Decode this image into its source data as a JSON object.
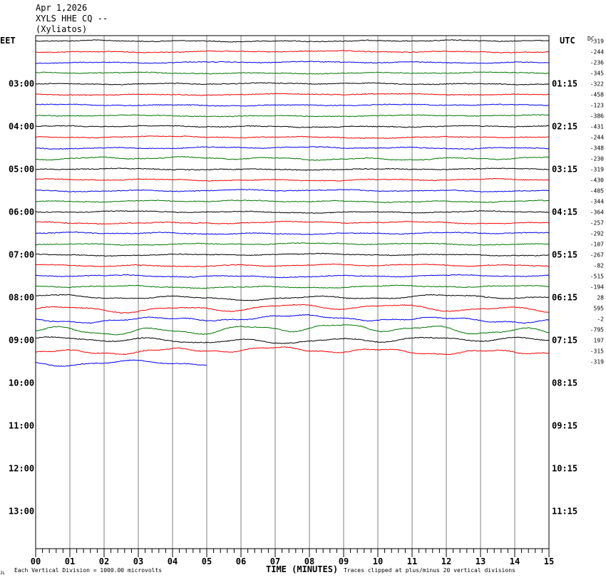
{
  "header": {
    "date": "Apr 1,2026",
    "station": "XYLS HHE CQ --",
    "location": "(Xyliatos)"
  },
  "labels": {
    "left_zone": "EET",
    "right_zone": "UTC",
    "dc_header": "DC",
    "xlabel": "TIME (MINUTES)",
    "scale_note": "Each Vertical Division = 1000.00 microvolts",
    "clip_note": "Traces clipped at plus/minus 20 vertical divisions",
    "corner_mark": "JL"
  },
  "colors": {
    "cycle": [
      "#000000",
      "#ff0000",
      "#0000ff",
      "#007700"
    ],
    "grid": "#808080",
    "background": "#ffffff"
  },
  "chart_data": {
    "type": "line",
    "title": "",
    "x_ticks": [
      "00",
      "01",
      "02",
      "03",
      "04",
      "05",
      "06",
      "07",
      "08",
      "09",
      "10",
      "11",
      "12",
      "13",
      "14",
      "15"
    ],
    "xlim": [
      0,
      15
    ],
    "left_hour_labels": [
      "03:00",
      "04:00",
      "05:00",
      "06:00",
      "07:00",
      "08:00",
      "09:00",
      "10:00",
      "11:00",
      "12:00",
      "13:00"
    ],
    "right_hour_labels": [
      "01:15",
      "02:15",
      "03:15",
      "04:15",
      "05:15",
      "06:15",
      "07:15",
      "08:15",
      "09:15",
      "10:15",
      "11:15"
    ],
    "traces_per_hour": 4,
    "minutes_per_trace": 15,
    "dc_offsets": [
      "-319",
      "-244",
      "-236",
      "-345",
      "-322",
      "-458",
      "-123",
      "-386",
      "-431",
      "-244",
      "-348",
      "-230",
      "-319",
      "-430",
      "-405",
      "-344",
      "-364",
      "-257",
      "-292",
      "-107",
      "-267",
      "-82",
      "-515",
      "-194",
      "28",
      "595",
      "-2",
      "-795",
      "197",
      "-315",
      "-319"
    ],
    "trace_activity": [
      0.4,
      0.4,
      0.4,
      0.4,
      0.4,
      0.4,
      0.4,
      0.4,
      0.4,
      0.5,
      0.5,
      0.8,
      0.4,
      0.5,
      0.5,
      0.5,
      0.5,
      0.6,
      0.5,
      0.5,
      0.5,
      0.6,
      0.6,
      0.7,
      1.3,
      2.0,
      1.8,
      2.6,
      1.6,
      1.8,
      2.2
    ],
    "last_trace_end_minute": 5.0
  }
}
